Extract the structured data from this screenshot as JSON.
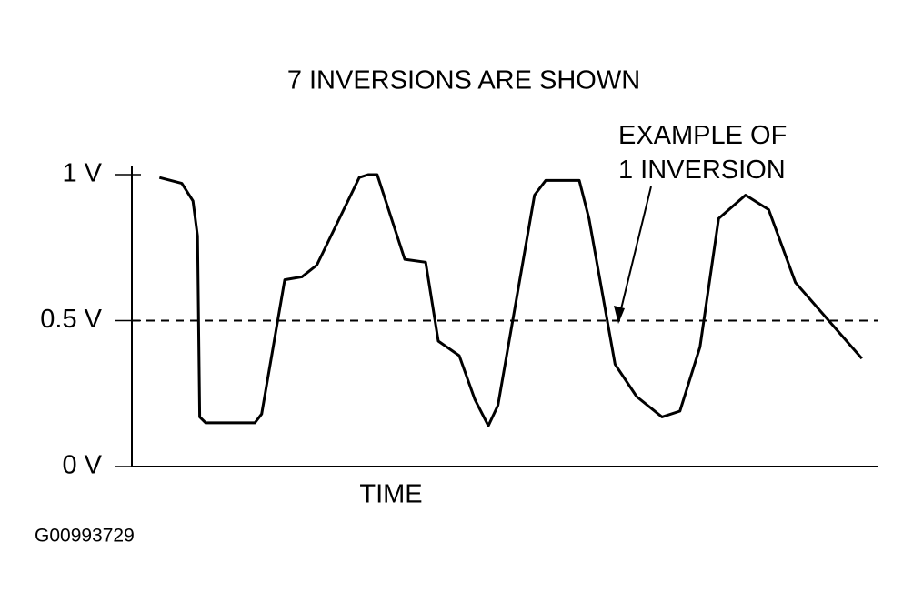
{
  "chart_data": {
    "type": "line",
    "title": "7 INVERSIONS ARE SHOWN",
    "x_label": "TIME",
    "annotation": "EXAMPLE OF\n1 INVERSION",
    "figure_id": "G00993729",
    "color": "#000000",
    "x": [
      3.7,
      6.7,
      8.2,
      8.8,
      9.1,
      9.9,
      16.5,
      17.4,
      20.5,
      22.8,
      24.8,
      30.5,
      31.7,
      32.9,
      36.6,
      39.4,
      41.1,
      43.9,
      46.0,
      47.8,
      49.1,
      54.0,
      55.5,
      60.0,
      61.3,
      64.8,
      67.7,
      71.1,
      73.5,
      76.2,
      78.7,
      82.3,
      85.4,
      89.0,
      92.1,
      97.9
    ],
    "values": [
      0.99,
      0.97,
      0.91,
      0.79,
      0.17,
      0.15,
      0.15,
      0.18,
      0.64,
      0.65,
      0.69,
      0.99,
      1.0,
      1.0,
      0.71,
      0.7,
      0.43,
      0.38,
      0.23,
      0.14,
      0.21,
      0.93,
      0.98,
      0.98,
      0.85,
      0.35,
      0.24,
      0.17,
      0.19,
      0.41,
      0.85,
      0.93,
      0.88,
      0.63,
      0.54,
      0.37
    ],
    "xlim": [
      0,
      100
    ],
    "ylim": [
      0,
      1
    ],
    "yticks": [
      {
        "value": 1,
        "label": "1 V"
      },
      {
        "value": 0.5,
        "label": "0.5 V"
      },
      {
        "value": 0,
        "label": "0 V"
      }
    ]
  }
}
